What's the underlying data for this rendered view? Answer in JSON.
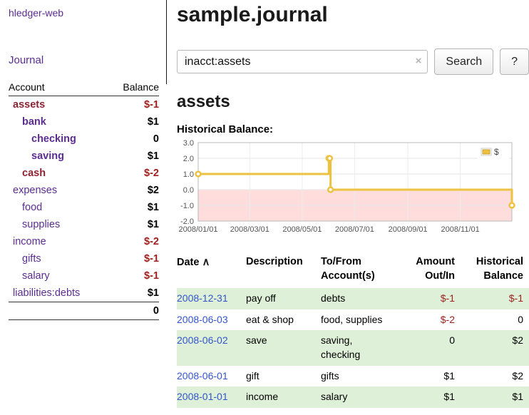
{
  "sidebar": {
    "app_title": "hledger-web",
    "journal_label": "Journal",
    "accounts": {
      "headers": {
        "account": "Account",
        "balance": "Balance"
      },
      "rows": [
        {
          "name": "assets",
          "balance": "$-1",
          "depth": 0,
          "emphasis": true,
          "name_negative": true,
          "balance_negative": true
        },
        {
          "name": "bank",
          "balance": "$1",
          "depth": 1,
          "emphasis": true,
          "name_negative": false,
          "balance_negative": false
        },
        {
          "name": "checking",
          "balance": "0",
          "depth": 2,
          "emphasis": true,
          "name_negative": false,
          "balance_negative": false
        },
        {
          "name": "saving",
          "balance": "$1",
          "depth": 2,
          "emphasis": true,
          "name_negative": false,
          "balance_negative": false
        },
        {
          "name": "cash",
          "balance": "$-2",
          "depth": 1,
          "emphasis": true,
          "name_negative": true,
          "balance_negative": true
        },
        {
          "name": "expenses",
          "balance": "$2",
          "depth": 0,
          "emphasis": false,
          "name_negative": false,
          "balance_negative": false
        },
        {
          "name": "food",
          "balance": "$1",
          "depth": 1,
          "emphasis": false,
          "name_negative": false,
          "balance_negative": false
        },
        {
          "name": "supplies",
          "balance": "$1",
          "depth": 1,
          "emphasis": false,
          "name_negative": false,
          "balance_negative": false
        },
        {
          "name": "income",
          "balance": "$-2",
          "depth": 0,
          "emphasis": false,
          "name_negative": false,
          "balance_negative": true
        },
        {
          "name": "gifts",
          "balance": "$-1",
          "depth": 1,
          "emphasis": false,
          "name_negative": false,
          "balance_negative": true
        },
        {
          "name": "salary",
          "balance": "$-1",
          "depth": 1,
          "emphasis": false,
          "name_negative": false,
          "balance_negative": true
        },
        {
          "name": "liabilities:debts",
          "balance": "$1",
          "depth": 0,
          "emphasis": false,
          "name_negative": false,
          "balance_negative": false
        }
      ],
      "total": "0"
    }
  },
  "main": {
    "title": "sample.journal",
    "search": {
      "value": "inacct:assets",
      "clear_icon": "×",
      "button_label": "Search",
      "help_label": "?"
    },
    "account_heading": "assets",
    "chart_label": "Historical Balance:"
  },
  "chart_data": {
    "type": "line",
    "line_style": "step",
    "title": "Historical Balance",
    "series": [
      {
        "name": "$",
        "color": "#edc240",
        "points": [
          {
            "date": "2008-01-01",
            "day": 0,
            "value": 1
          },
          {
            "date": "2008-06-01",
            "day": 152,
            "value": 2
          },
          {
            "date": "2008-06-02",
            "day": 153,
            "value": 2
          },
          {
            "date": "2008-06-03",
            "day": 154,
            "value": 0
          },
          {
            "date": "2008-12-31",
            "day": 365,
            "value": -1
          }
        ]
      }
    ],
    "xlim_days": [
      0,
      365
    ],
    "ylim": [
      -2.0,
      3.0
    ],
    "y_ticks": [
      3.0,
      2.0,
      1.0,
      0.0,
      -1.0,
      -2.0
    ],
    "x_ticks": [
      {
        "label": "2008/01/01",
        "day": 0
      },
      {
        "label": "2008/03/01",
        "day": 60
      },
      {
        "label": "2008/05/01",
        "day": 121
      },
      {
        "label": "2008/07/01",
        "day": 182
      },
      {
        "label": "2008/09/01",
        "day": 244
      },
      {
        "label": "2008/11/01",
        "day": 305
      }
    ],
    "grid": true,
    "legend": {
      "label": "$",
      "position": "top-right"
    },
    "negative_region_color": "#ffdddd"
  },
  "register": {
    "headers": {
      "date": "Date",
      "sort_icon": "∧",
      "description": "Description",
      "account_line1": "To/From",
      "account_line2": "Account(s)",
      "amount_line1": "Amount",
      "amount_line2": "Out/In",
      "balance_line1": "Historical",
      "balance_line2": "Balance"
    },
    "rows": [
      {
        "date": "2008-12-31",
        "description": "pay off",
        "accounts": "debts",
        "amount": "$-1",
        "amount_negative": true,
        "balance": "$-1",
        "balance_negative": true
      },
      {
        "date": "2008-06-03",
        "description": "eat & shop",
        "accounts": "food, supplies",
        "amount": "$-2",
        "amount_negative": true,
        "balance": "0",
        "balance_negative": false
      },
      {
        "date": "2008-06-02",
        "description": "save",
        "accounts": "saving, checking",
        "amount": "0",
        "amount_negative": false,
        "balance": "$2",
        "balance_negative": false
      },
      {
        "date": "2008-06-01",
        "description": "gift",
        "accounts": "gifts",
        "amount": "$1",
        "amount_negative": false,
        "balance": "$2",
        "balance_negative": false
      },
      {
        "date": "2008-01-01",
        "description": "income",
        "accounts": "salary",
        "amount": "$1",
        "amount_negative": false,
        "balance": "$1",
        "balance_negative": false
      }
    ]
  },
  "colors": {
    "link_purple": "#5b2d91",
    "link_blue": "#3355cc",
    "negative_red": "#a02020",
    "negative_name_maroon": "#8b2433",
    "row_green": "#dff0d8",
    "chart_gold": "#edc240",
    "chart_negative_bg": "#ffdddd"
  }
}
